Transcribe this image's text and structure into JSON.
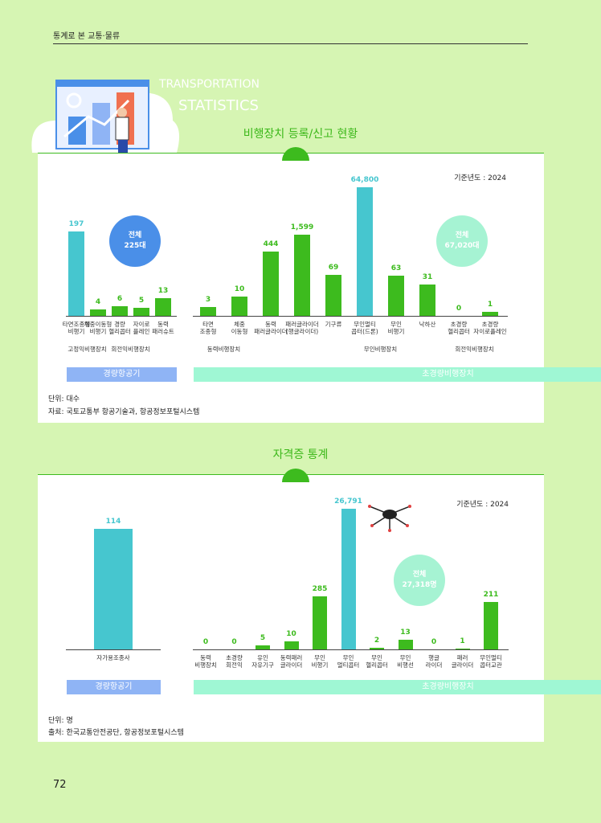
{
  "header": "통계로 본 교통·물류",
  "hero": {
    "line1": "TRANSPORTATION",
    "line2": "STATISTICS"
  },
  "sections": [
    {
      "title": "비행장치 등록/신고 현황",
      "base_year": "기준년도 : 2024",
      "unit": "단위: 대수",
      "source": "자료: 국토교통부 항공기술과, 항공정보포털시스템"
    },
    {
      "title": "자격증 통계",
      "base_year": "기준년도 : 2024",
      "unit": "단위: 명",
      "source": "출처: 한국교통안전공단, 항공정보포털시스템"
    }
  ],
  "page_number": "72",
  "chart_data": [
    {
      "type": "bar",
      "band_label": "경량항공기",
      "total": "전체\n225대",
      "total_color": "#4a8fe8",
      "categories": [
        "타면조종형\n비행기",
        "체중이동형\n비행기",
        "경량\n헬리콥터",
        "자이로\n플레인",
        "동력\n패러슈트"
      ],
      "values": [
        197,
        4,
        6,
        5,
        13
      ],
      "value_labels": [
        "197",
        "4",
        "6",
        "5",
        "13"
      ],
      "colors": [
        "#46c6cf",
        "#3dbb1e",
        "#3dbb1e",
        "#3dbb1e",
        "#3dbb1e"
      ],
      "groups": [
        "고정익비행장치",
        "회전익비행장치"
      ]
    },
    {
      "type": "bar",
      "band_label": "초경량비행장치",
      "total": "전체\n67,020대",
      "total_color": "#a6f3d3",
      "categories": [
        "타면\n조종형",
        "체중\n이동형",
        "동력\n패러글라이더",
        "패러글라이더\n(행글라이더)",
        "기구류",
        "무인멀티\n콥터(드론)",
        "무인\n비행기",
        "낙하산",
        "초경량\n헬리콥터",
        "초경량\n자이로플레인"
      ],
      "values": [
        3,
        10,
        444,
        1599,
        69,
        64800,
        63,
        31,
        0,
        1
      ],
      "value_labels": [
        "3",
        "10",
        "444",
        "1,599",
        "69",
        "64,800",
        "63",
        "31",
        "0",
        "1"
      ],
      "colors": [
        "#3dbb1e",
        "#3dbb1e",
        "#3dbb1e",
        "#3dbb1e",
        "#3dbb1e",
        "#46c6cf",
        "#3dbb1e",
        "#3dbb1e",
        "#3dbb1e",
        "#3dbb1e"
      ],
      "groups": [
        "동력비행장치",
        "무인비행장치",
        "회전익비행장치"
      ]
    },
    {
      "type": "bar",
      "band_label": "경량항공기",
      "categories": [
        "자가용조종사"
      ],
      "values": [
        114
      ],
      "value_labels": [
        "114"
      ],
      "colors": [
        "#46c6cf"
      ]
    },
    {
      "type": "bar",
      "band_label": "초경량비행장치",
      "total": "전체\n27,318명",
      "total_color": "#a6f3d3",
      "categories": [
        "동력\n비행장치",
        "초경량\n회전익",
        "유인\n자유기구",
        "동력패러\n글라이더",
        "무인\n비행기",
        "무인\n멀티콥터",
        "무인\n헬리콥터",
        "무인\n비행선",
        "행글\n라이더",
        "패러\n글라이더",
        "무인멀티\n콥터교관"
      ],
      "values": [
        0,
        0,
        5,
        10,
        285,
        26791,
        2,
        13,
        0,
        1,
        211
      ],
      "value_labels": [
        "0",
        "0",
        "5",
        "10",
        "285",
        "26,791",
        "2",
        "13",
        "0",
        "1",
        "211"
      ],
      "colors": [
        "#3dbb1e",
        "#3dbb1e",
        "#3dbb1e",
        "#3dbb1e",
        "#3dbb1e",
        "#46c6cf",
        "#3dbb1e",
        "#3dbb1e",
        "#3dbb1e",
        "#3dbb1e",
        "#3dbb1e"
      ]
    }
  ]
}
